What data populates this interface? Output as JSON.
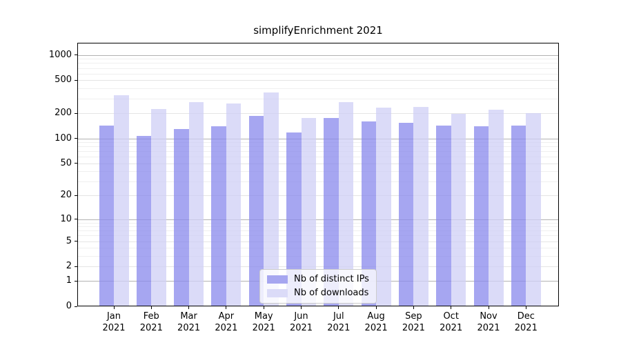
{
  "title": "simplifyEnrichment 2021",
  "chart_data": {
    "type": "bar",
    "title": "simplifyEnrichment 2021",
    "categories": [
      "Jan 2021",
      "Feb 2021",
      "Mar 2021",
      "Apr 2021",
      "May 2021",
      "Jun 2021",
      "Jul 2021",
      "Aug 2021",
      "Sep 2021",
      "Oct 2021",
      "Nov 2021",
      "Dec 2021"
    ],
    "series": [
      {
        "name": "Nb of distinct IPs",
        "color": "rgba(136,136,236,0.75)",
        "legend_color": "#a6a6f0",
        "values": [
          144,
          108,
          131,
          140,
          188,
          119,
          177,
          161,
          155,
          144,
          140,
          142
        ]
      },
      {
        "name": "Nb of downloads",
        "color": "rgba(207,207,246,0.75)",
        "legend_color": "#dbdbf8",
        "values": [
          330,
          227,
          273,
          261,
          357,
          176,
          275,
          236,
          240,
          198,
          223,
          200
        ]
      }
    ],
    "xlabel": "",
    "ylabel": "",
    "yscale": "log1p",
    "yticks": [
      0,
      1,
      2,
      5,
      10,
      20,
      50,
      100,
      200,
      500,
      1000
    ],
    "minor_gridlines": [
      3,
      4,
      6,
      7,
      8,
      9,
      30,
      40,
      60,
      70,
      80,
      90,
      300,
      400,
      600,
      700,
      800,
      900
    ],
    "ylim": [
      0,
      1400
    ],
    "grid": true,
    "legend_position": "lower center",
    "colors": {
      "grid_major": "#b2b2b2",
      "grid_labeled_minor": "#e4e4e4",
      "grid_minor": "#efefef",
      "axis": "#000000"
    }
  }
}
